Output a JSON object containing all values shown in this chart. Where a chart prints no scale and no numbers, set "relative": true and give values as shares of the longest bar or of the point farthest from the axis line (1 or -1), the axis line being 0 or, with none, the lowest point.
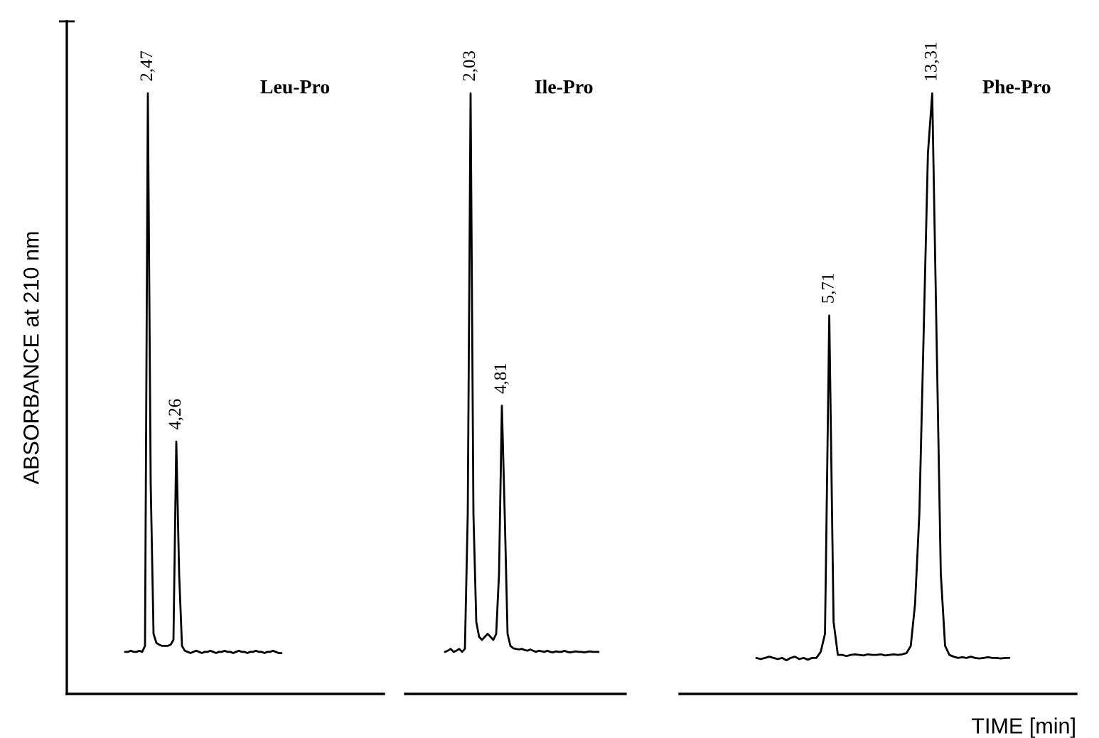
{
  "chart_data": [
    {
      "type": "line",
      "relative": true,
      "title": "Leu-Pro",
      "ylabel": "ABSORBANCE at 210 nm",
      "annotations": [
        {
          "text": "2,47",
          "y": 1.0
        },
        {
          "text": "4,26",
          "y": 0.42
        }
      ],
      "categories": [
        null,
        null,
        null,
        null,
        null,
        null,
        null,
        null,
        null,
        null,
        null,
        null,
        null,
        null,
        null,
        null,
        null,
        null,
        null,
        null,
        null,
        null,
        null,
        null,
        null,
        null,
        null,
        null,
        null,
        null,
        null,
        null,
        null,
        null,
        null,
        null,
        null,
        null,
        null,
        null,
        null,
        null,
        null,
        null,
        null,
        null,
        null,
        null,
        null,
        null,
        null,
        null,
        null,
        null,
        null,
        null
      ],
      "series": [
        {
          "color": "#000000",
          "values": [
            0.07,
            0.07,
            0.072,
            0.07,
            0.07,
            0.072,
            0.07,
            0.08,
            1.0,
            0.35,
            0.1,
            0.085,
            0.082,
            0.08,
            0.08,
            0.08,
            0.082,
            0.09,
            0.42,
            0.2,
            0.08,
            0.072,
            0.07,
            0.068,
            0.07,
            0.072,
            0.07,
            0.068,
            0.07,
            0.07,
            0.072,
            0.07,
            0.068,
            0.07,
            0.07,
            0.072,
            0.07,
            0.07,
            0.068,
            0.07,
            0.072,
            0.07,
            0.07,
            0.068,
            0.07,
            0.07,
            0.072,
            0.07,
            0.07,
            0.068,
            0.07,
            0.07,
            0.072,
            0.07,
            0.068,
            0.068
          ]
        }
      ]
    },
    {
      "type": "line",
      "relative": true,
      "title": "Ile-Pro",
      "annotations": [
        {
          "text": "2,03",
          "y": 1.0
        },
        {
          "text": "4,81",
          "y": 0.48
        }
      ],
      "categories": [
        null,
        null,
        null,
        null,
        null,
        null,
        null,
        null,
        null,
        null,
        null,
        null,
        null,
        null,
        null,
        null,
        null,
        null,
        null,
        null,
        null,
        null,
        null,
        null,
        null,
        null,
        null,
        null,
        null,
        null,
        null,
        null,
        null,
        null,
        null,
        null,
        null,
        null,
        null,
        null,
        null,
        null,
        null,
        null,
        null,
        null,
        null,
        null,
        null,
        null,
        null,
        null,
        null,
        null,
        null
      ],
      "series": [
        {
          "color": "#000000",
          "values": [
            0.07,
            0.072,
            0.075,
            0.07,
            0.072,
            0.075,
            0.07,
            0.075,
            0.3,
            1.0,
            0.3,
            0.12,
            0.095,
            0.09,
            0.095,
            0.1,
            0.095,
            0.09,
            0.1,
            0.2,
            0.48,
            0.3,
            0.1,
            0.08,
            0.076,
            0.075,
            0.074,
            0.075,
            0.073,
            0.072,
            0.074,
            0.072,
            0.07,
            0.072,
            0.071,
            0.07,
            0.072,
            0.07,
            0.069,
            0.071,
            0.07,
            0.07,
            0.072,
            0.07,
            0.069,
            0.07,
            0.071,
            0.07,
            0.07,
            0.069,
            0.07,
            0.071,
            0.07,
            0.07,
            0.07
          ]
        }
      ]
    },
    {
      "type": "line",
      "relative": true,
      "title": "Phe-Pro",
      "xlabel": "TIME [min]",
      "annotations": [
        {
          "text": "5,71",
          "y": 0.63
        },
        {
          "text": "13,31",
          "y": 1.0
        }
      ],
      "categories": [
        null,
        null,
        null,
        null,
        null,
        null,
        null,
        null,
        null,
        null,
        null,
        null,
        null,
        null,
        null,
        null,
        null,
        null,
        null,
        null,
        null,
        null,
        null,
        null,
        null,
        null,
        null,
        null,
        null,
        null,
        null,
        null,
        null,
        null,
        null,
        null,
        null,
        null,
        null,
        null,
        null,
        null,
        null,
        null,
        null,
        null,
        null,
        null,
        null,
        null,
        null,
        null,
        null,
        null,
        null,
        null,
        null,
        null,
        null,
        null
      ],
      "series": [
        {
          "color": "#000000",
          "values": [
            0.06,
            0.058,
            0.06,
            0.062,
            0.06,
            0.058,
            0.06,
            0.056,
            0.06,
            0.062,
            0.058,
            0.06,
            0.057,
            0.06,
            0.06,
            0.07,
            0.1,
            0.63,
            0.12,
            0.065,
            0.065,
            0.063,
            0.065,
            0.066,
            0.065,
            0.064,
            0.066,
            0.065,
            0.065,
            0.066,
            0.064,
            0.065,
            0.066,
            0.065,
            0.066,
            0.068,
            0.08,
            0.15,
            0.3,
            0.6,
            0.9,
            1.0,
            0.6,
            0.2,
            0.08,
            0.065,
            0.062,
            0.06,
            0.061,
            0.06,
            0.062,
            0.06,
            0.059,
            0.06,
            0.061,
            0.06,
            0.06,
            0.059,
            0.06,
            0.06
          ]
        }
      ]
    }
  ]
}
